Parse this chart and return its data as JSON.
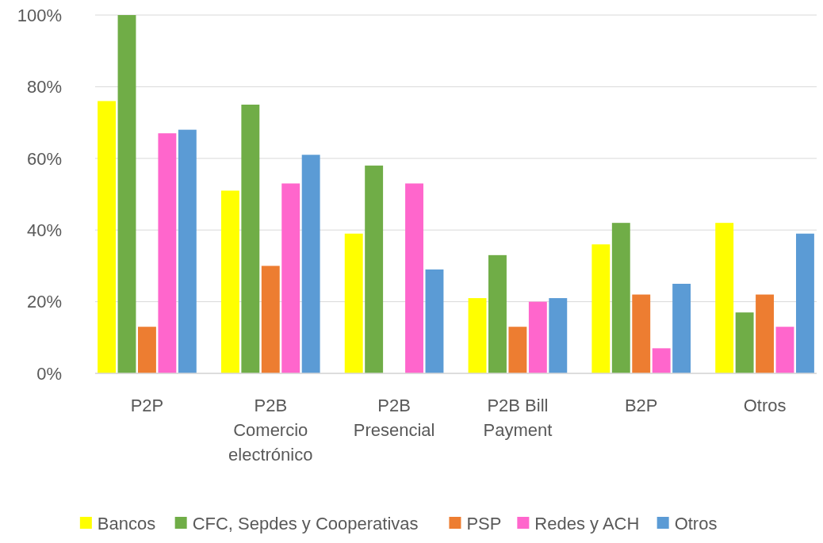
{
  "chart_data": {
    "type": "bar",
    "categories": [
      "P2P",
      "P2B Comercio electrónico",
      "P2B Presencial",
      "P2B Bill Payment",
      "B2P",
      "Otros"
    ],
    "series": [
      {
        "name": "Bancos",
        "color": "#ffff00",
        "values": [
          76,
          51,
          39,
          21,
          36,
          42
        ]
      },
      {
        "name": "CFC, Sepdes y Cooperativas",
        "color": "#70ad47",
        "values": [
          100,
          75,
          58,
          33,
          42,
          17
        ]
      },
      {
        "name": "PSP",
        "color": "#ed7d31",
        "values": [
          13,
          30,
          null,
          13,
          22,
          22
        ]
      },
      {
        "name": "Redes y ACH",
        "color": "#ff66cc",
        "values": [
          67,
          53,
          53,
          20,
          7,
          13
        ]
      },
      {
        "name": "Otros",
        "color": "#5b9bd5",
        "values": [
          68,
          61,
          29,
          21,
          25,
          39
        ]
      }
    ],
    "ylim": [
      0,
      100
    ],
    "yticks": [
      {
        "value": 0,
        "label": "0%"
      },
      {
        "value": 20,
        "label": "20%"
      },
      {
        "value": 40,
        "label": "40%"
      },
      {
        "value": 60,
        "label": "60%"
      },
      {
        "value": 80,
        "label": "80%"
      },
      {
        "value": 100,
        "label": "100%"
      }
    ],
    "grid": "y",
    "legend": "bottom"
  }
}
